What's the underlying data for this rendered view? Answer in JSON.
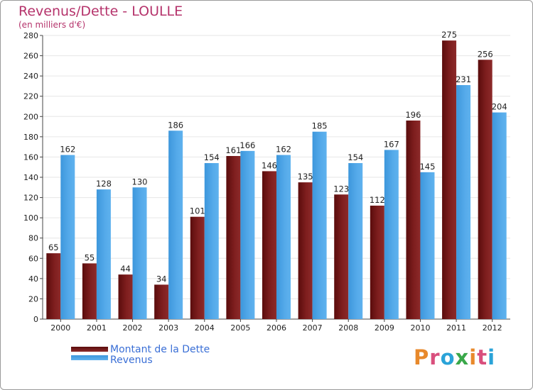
{
  "header": {
    "title": "Revenus/Dette - LOULLE",
    "subtitle": "(en milliers d'€)"
  },
  "legend": {
    "dette_label": "Montant de la Dette",
    "revenus_label": "Revenus"
  },
  "logo": {
    "text": "Proxiti",
    "colors": [
      "#e8892b",
      "#d94f7d",
      "#2aa3d8",
      "#3aa84a",
      "#e8892b",
      "#d94f7d",
      "#2aa3d8"
    ]
  },
  "colors": {
    "dette": "#7a1a1a",
    "dette_dark": "#5c0e0e",
    "revenus": "#4ea6e6",
    "revenus_dark": "#2f86c9",
    "grid": "#e6e6e6",
    "background": "#ffffff"
  },
  "chart_data": {
    "type": "bar",
    "title": "Revenus/Dette - LOULLE",
    "subtitle": "(en milliers d'€)",
    "categories": [
      "2000",
      "2001",
      "2002",
      "2003",
      "2004",
      "2005",
      "2006",
      "2007",
      "2008",
      "2009",
      "2010",
      "2011",
      "2012"
    ],
    "series": [
      {
        "name": "Montant de la Dette",
        "values": [
          65,
          55,
          44,
          34,
          101,
          161,
          146,
          135,
          123,
          112,
          196,
          275,
          256
        ]
      },
      {
        "name": "Revenus",
        "values": [
          162,
          128,
          130,
          186,
          154,
          166,
          162,
          185,
          154,
          167,
          145,
          231,
          204
        ]
      }
    ],
    "ylim": [
      0,
      280
    ],
    "yticks": [
      0,
      20,
      40,
      60,
      80,
      100,
      120,
      140,
      160,
      180,
      200,
      220,
      240,
      260,
      280
    ],
    "grid": true,
    "legend_position": "bottom-left"
  }
}
